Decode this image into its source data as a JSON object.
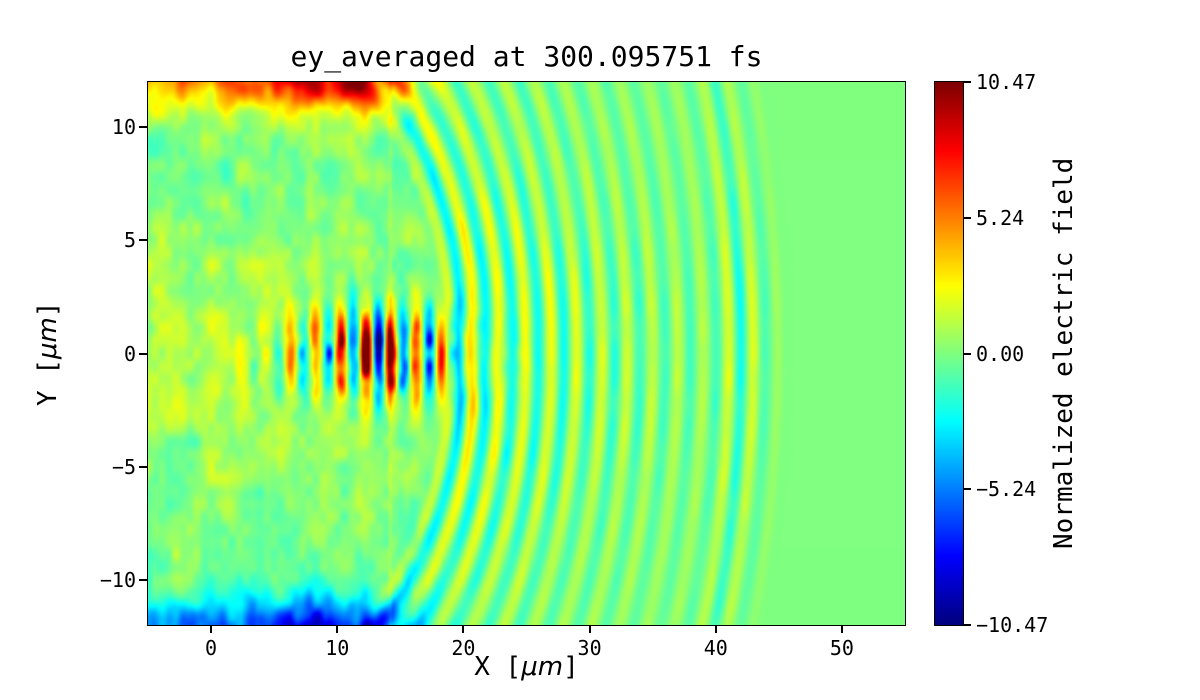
{
  "chart_data": {
    "type": "heatmap",
    "title": "ey_averaged at 300.095751 fs",
    "xlabel": "X [μm]",
    "ylabel": "Y [μm]",
    "xlim": [
      -5,
      55
    ],
    "ylim": [
      -12,
      12
    ],
    "grid": false,
    "colormap": "jet",
    "background_field_value": 0,
    "xticks": [
      {
        "value": 0,
        "label": "0"
      },
      {
        "value": 10,
        "label": "10"
      },
      {
        "value": 20,
        "label": "20"
      },
      {
        "value": 30,
        "label": "30"
      },
      {
        "value": 40,
        "label": "40"
      },
      {
        "value": 50,
        "label": "50"
      }
    ],
    "yticks": [
      {
        "value": 10,
        "label": "10"
      },
      {
        "value": 5,
        "label": "5"
      },
      {
        "value": 0,
        "label": "0"
      },
      {
        "value": -5,
        "label": "−5"
      },
      {
        "value": -10,
        "label": "−10"
      }
    ],
    "colorbar": {
      "label": "Normalized electric field",
      "position": "right",
      "vmin": -10.47,
      "vmax": 10.47,
      "ticks": [
        {
          "value": 10.47,
          "label": "10.47"
        },
        {
          "value": 5.24,
          "label": "5.24"
        },
        {
          "value": 0,
          "label": "0.00"
        },
        {
          "value": -5.24,
          "label": "−5.24"
        },
        {
          "value": -10.47,
          "label": "−10.47"
        }
      ]
    },
    "features": {
      "laser_pulse": {
        "x_center": 13,
        "x_sigma_left": 6.5,
        "x_sigma_right": 7.5,
        "y_sigma": 1.9,
        "wavelength_um": 2.0,
        "peak_amplitude": 10.5
      },
      "wakefield_arcs": {
        "center_x": 6,
        "front_radius": 14,
        "max_radius": 39,
        "wavelength_um": 2.0,
        "front_amplitude": 3.6,
        "outer_arc_radius": 36,
        "outer_arc_boost": 1.4
      },
      "top_edge_band": {
        "y_center": 12.3,
        "y_sigma": 1.5,
        "x_cutoff": 15.5,
        "peak_x": 10,
        "amplitude": 9.5,
        "sign": 1
      },
      "bottom_edge_band": {
        "y_center": -12.3,
        "y_sigma": 1.5,
        "x_cutoff": 15.5,
        "peak_x": 10,
        "amplitude": 9.5,
        "sign": -1
      },
      "mottled_region": {
        "x_max": 19,
        "amplitude": 1.6,
        "axis_warm_bias": 1.0
      },
      "window_boundary_line": {
        "x": 14.2,
        "amplitude": 1.2
      }
    }
  }
}
